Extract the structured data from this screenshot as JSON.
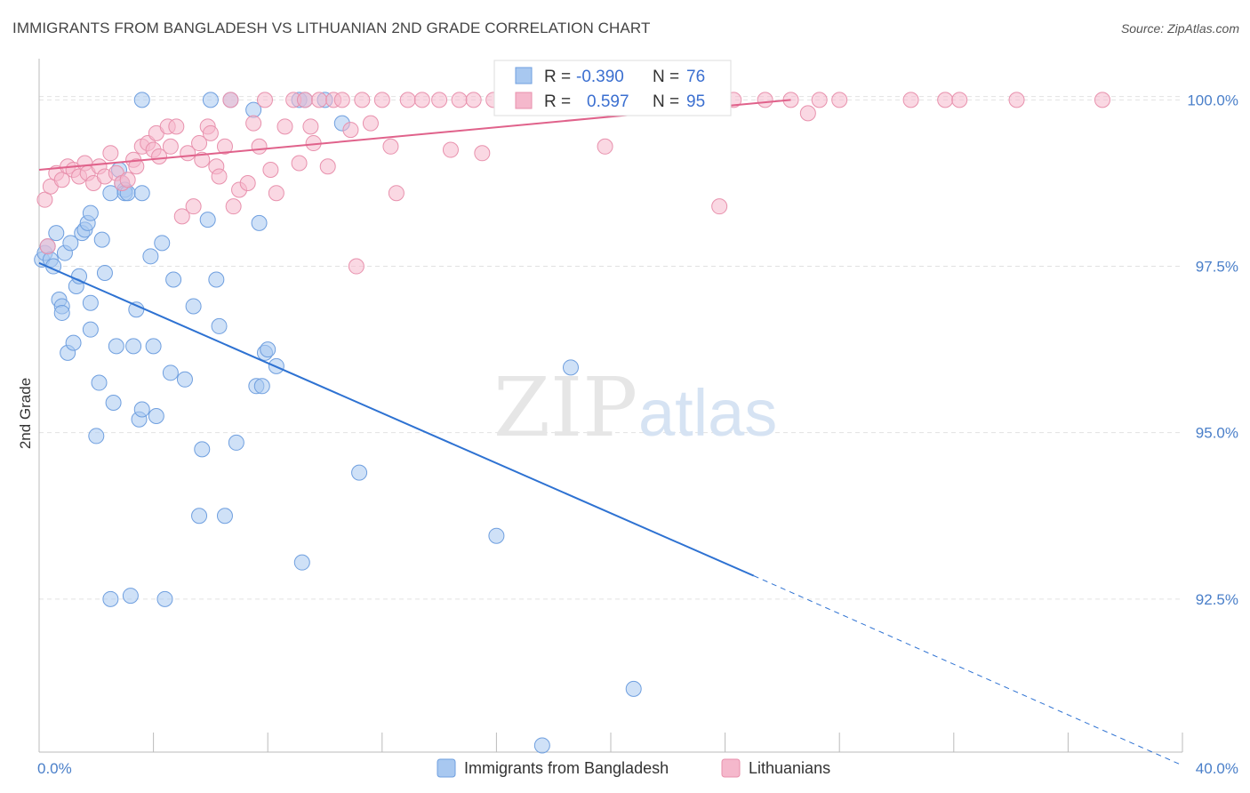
{
  "header": {
    "title": "IMMIGRANTS FROM BANGLADESH VS LITHUANIAN 2ND GRADE CORRELATION CHART",
    "source": "Source: ZipAtlas.com"
  },
  "watermark": {
    "zip": "ZIP",
    "atlas": "atlas"
  },
  "chart_data": {
    "type": "scatter",
    "ylabel": "2nd Grade",
    "xlim": [
      0,
      40
    ],
    "ylim": [
      90.2,
      100.7
    ],
    "x_tick_labels": [
      "0.0%",
      "40.0%"
    ],
    "y_ticks": [
      {
        "value": 100.0,
        "label": "100.0%"
      },
      {
        "value": 97.5,
        "label": "97.5%"
      },
      {
        "value": 95.0,
        "label": "95.0%"
      },
      {
        "value": 92.5,
        "label": "92.5%"
      }
    ],
    "legend": {
      "rows": [
        {
          "r_label": "R = ",
          "r_value": "-0.390",
          "n_label": "N = ",
          "n_value": "76",
          "color": "#a8c8f0"
        },
        {
          "r_label": "R = ",
          "r_value": "0.597",
          "n_label": "N = ",
          "n_value": "95",
          "color": "#f5b8cc"
        }
      ]
    },
    "series": [
      {
        "name": "Immigrants from Bangladesh",
        "color": "#a8c8f0",
        "stroke": "#6f9fdf",
        "trend_color": "#2e72d2",
        "trend": {
          "x0": 0.0,
          "y0": 97.55,
          "x1": 25.0,
          "y1": 92.85,
          "dash_to_x": 40.0,
          "dash_to_y": 90.0
        },
        "points": [
          [
            0.1,
            97.6
          ],
          [
            0.2,
            97.7
          ],
          [
            0.3,
            97.8
          ],
          [
            0.4,
            97.6
          ],
          [
            0.5,
            97.5
          ],
          [
            0.6,
            98.0
          ],
          [
            0.7,
            97.0
          ],
          [
            0.8,
            96.9
          ],
          [
            0.8,
            96.8
          ],
          [
            0.9,
            97.7
          ],
          [
            1.0,
            96.2
          ],
          [
            1.1,
            97.85
          ],
          [
            1.2,
            96.35
          ],
          [
            1.3,
            97.2
          ],
          [
            1.4,
            97.35
          ],
          [
            1.5,
            98.0
          ],
          [
            1.6,
            98.05
          ],
          [
            1.7,
            98.15
          ],
          [
            1.8,
            98.3
          ],
          [
            1.8,
            96.95
          ],
          [
            1.8,
            96.55
          ],
          [
            2.0,
            94.95
          ],
          [
            2.1,
            95.75
          ],
          [
            2.2,
            97.9
          ],
          [
            2.3,
            97.4
          ],
          [
            2.5,
            98.6
          ],
          [
            2.5,
            92.5
          ],
          [
            2.6,
            95.45
          ],
          [
            2.7,
            96.3
          ],
          [
            2.8,
            98.95
          ],
          [
            2.9,
            98.75
          ],
          [
            3.0,
            98.65
          ],
          [
            3.0,
            98.6
          ],
          [
            3.1,
            98.6
          ],
          [
            3.2,
            92.55
          ],
          [
            3.3,
            96.3
          ],
          [
            3.4,
            96.85
          ],
          [
            3.5,
            95.2
          ],
          [
            3.6,
            95.35
          ],
          [
            3.6,
            98.6
          ],
          [
            3.6,
            100.0
          ],
          [
            3.9,
            97.65
          ],
          [
            4.0,
            96.3
          ],
          [
            4.1,
            95.25
          ],
          [
            4.3,
            97.85
          ],
          [
            4.4,
            92.5
          ],
          [
            4.6,
            95.9
          ],
          [
            4.7,
            97.3
          ],
          [
            5.1,
            95.8
          ],
          [
            5.4,
            96.9
          ],
          [
            5.6,
            93.75
          ],
          [
            5.7,
            94.75
          ],
          [
            5.9,
            98.2
          ],
          [
            6.0,
            100.0
          ],
          [
            6.2,
            97.3
          ],
          [
            6.3,
            96.6
          ],
          [
            6.5,
            93.75
          ],
          [
            6.7,
            100.0
          ],
          [
            6.9,
            94.85
          ],
          [
            7.5,
            99.85
          ],
          [
            7.6,
            95.7
          ],
          [
            7.7,
            98.15
          ],
          [
            7.8,
            95.7
          ],
          [
            7.9,
            96.2
          ],
          [
            8.0,
            96.25
          ],
          [
            8.3,
            96.0
          ],
          [
            9.1,
            100.0
          ],
          [
            9.2,
            93.05
          ],
          [
            9.3,
            100.0
          ],
          [
            10.0,
            100.0
          ],
          [
            10.6,
            99.65
          ],
          [
            11.2,
            94.4
          ],
          [
            16.0,
            93.45
          ],
          [
            18.6,
            95.98
          ],
          [
            20.8,
            91.15
          ],
          [
            17.6,
            90.3
          ]
        ]
      },
      {
        "name": "Lithuanians",
        "color": "#f5b8cc",
        "stroke": "#e891ad",
        "trend_color": "#e0628b",
        "trend": {
          "x0": 0.0,
          "y0": 98.95,
          "x1": 26.3,
          "y1": 100.0
        },
        "points": [
          [
            0.2,
            98.5
          ],
          [
            0.3,
            97.8
          ],
          [
            0.4,
            98.7
          ],
          [
            0.6,
            98.9
          ],
          [
            0.8,
            98.8
          ],
          [
            1.0,
            99.0
          ],
          [
            1.2,
            98.95
          ],
          [
            1.4,
            98.85
          ],
          [
            1.6,
            99.05
          ],
          [
            1.7,
            98.9
          ],
          [
            1.9,
            98.75
          ],
          [
            2.1,
            99.0
          ],
          [
            2.3,
            98.85
          ],
          [
            2.5,
            99.2
          ],
          [
            2.7,
            98.9
          ],
          [
            2.9,
            98.75
          ],
          [
            3.1,
            98.8
          ],
          [
            3.3,
            99.1
          ],
          [
            3.4,
            99.0
          ],
          [
            3.6,
            99.3
          ],
          [
            3.8,
            99.35
          ],
          [
            4.0,
            99.25
          ],
          [
            4.1,
            99.5
          ],
          [
            4.2,
            99.15
          ],
          [
            4.5,
            99.6
          ],
          [
            4.6,
            99.3
          ],
          [
            4.8,
            99.6
          ],
          [
            5.0,
            98.25
          ],
          [
            5.2,
            99.2
          ],
          [
            5.4,
            98.4
          ],
          [
            5.6,
            99.35
          ],
          [
            5.7,
            99.1
          ],
          [
            5.9,
            99.6
          ],
          [
            6.0,
            99.5
          ],
          [
            6.2,
            99.0
          ],
          [
            6.3,
            98.85
          ],
          [
            6.5,
            99.3
          ],
          [
            6.7,
            100.0
          ],
          [
            6.8,
            98.4
          ],
          [
            7.0,
            98.65
          ],
          [
            7.3,
            98.75
          ],
          [
            7.5,
            99.65
          ],
          [
            7.7,
            99.3
          ],
          [
            7.9,
            100.0
          ],
          [
            8.1,
            98.95
          ],
          [
            8.3,
            98.6
          ],
          [
            8.6,
            99.6
          ],
          [
            8.9,
            100.0
          ],
          [
            9.1,
            99.05
          ],
          [
            9.3,
            100.0
          ],
          [
            9.5,
            99.6
          ],
          [
            9.6,
            99.35
          ],
          [
            9.8,
            100.0
          ],
          [
            10.1,
            99.0
          ],
          [
            10.3,
            100.0
          ],
          [
            10.6,
            100.0
          ],
          [
            10.9,
            99.55
          ],
          [
            11.1,
            97.5
          ],
          [
            11.3,
            100.0
          ],
          [
            11.6,
            99.65
          ],
          [
            12.0,
            100.0
          ],
          [
            12.3,
            99.3
          ],
          [
            12.5,
            98.6
          ],
          [
            12.9,
            100.0
          ],
          [
            13.4,
            100.0
          ],
          [
            14.0,
            100.0
          ],
          [
            14.4,
            99.25
          ],
          [
            14.7,
            100.0
          ],
          [
            15.2,
            100.0
          ],
          [
            15.5,
            99.2
          ],
          [
            15.9,
            100.0
          ],
          [
            16.4,
            100.0
          ],
          [
            16.9,
            100.0
          ],
          [
            17.5,
            100.0
          ],
          [
            18.1,
            100.0
          ],
          [
            18.7,
            100.0
          ],
          [
            19.4,
            100.0
          ],
          [
            19.8,
            99.3
          ],
          [
            20.3,
            100.0
          ],
          [
            21.0,
            100.0
          ],
          [
            21.8,
            100.0
          ],
          [
            22.5,
            100.0
          ],
          [
            23.2,
            100.0
          ],
          [
            23.8,
            98.4
          ],
          [
            24.3,
            100.0
          ],
          [
            25.4,
            100.0
          ],
          [
            26.3,
            100.0
          ],
          [
            26.9,
            99.8
          ],
          [
            27.3,
            100.0
          ],
          [
            28.0,
            100.0
          ],
          [
            30.5,
            100.0
          ],
          [
            31.7,
            100.0
          ],
          [
            32.2,
            100.0
          ],
          [
            34.2,
            100.0
          ],
          [
            37.2,
            100.0
          ]
        ]
      }
    ]
  }
}
